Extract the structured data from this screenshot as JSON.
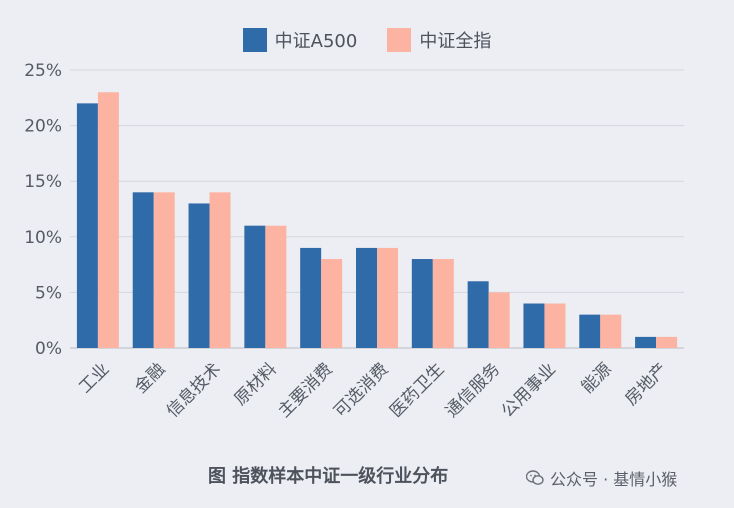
{
  "colors": {
    "series1": "#2f6aa9",
    "series2": "#fdb3a2",
    "grid": "#d3d6dd",
    "axis": "#b8bcc4"
  },
  "chart_data": {
    "type": "bar",
    "title": "",
    "xlabel": "",
    "ylabel": "",
    "ylim": [
      0,
      25
    ],
    "y_ticks": [
      "0%",
      "5%",
      "10%",
      "15%",
      "20%",
      "25%"
    ],
    "y_tick_values": [
      0,
      5,
      10,
      15,
      20,
      25
    ],
    "grid": true,
    "legend_position": "top-center",
    "categories": [
      "工业",
      "金融",
      "信息技术",
      "原材料",
      "主要消费",
      "可选消费",
      "医药卫生",
      "通信服务",
      "公用事业",
      "能源",
      "房地产"
    ],
    "series": [
      {
        "name": "中证A500",
        "values": [
          22,
          14,
          13,
          11,
          9,
          9,
          8,
          6,
          4,
          3,
          1
        ]
      },
      {
        "name": "中证全指",
        "values": [
          23,
          14,
          14,
          11,
          8,
          9,
          8,
          5,
          4,
          3,
          1
        ]
      }
    ]
  },
  "caption": "图  指数样本中证一级行业分布",
  "watermark": {
    "icon": "wechat-icon",
    "text": "公众号 · 基情小猴"
  }
}
